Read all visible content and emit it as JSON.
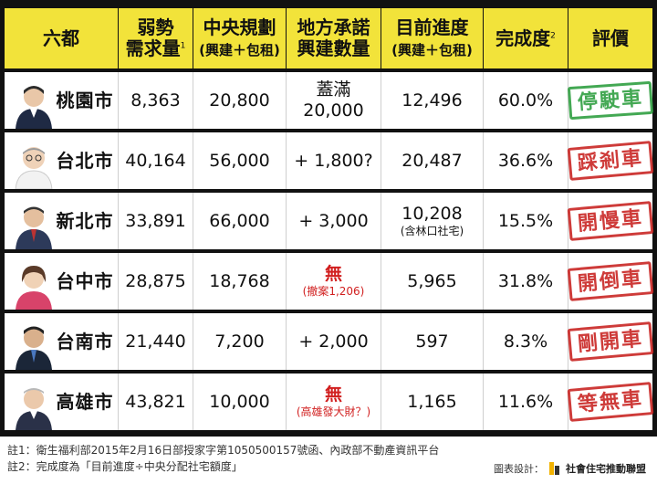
{
  "header": {
    "col_city": "六都",
    "col_demand_line1": "弱勢",
    "col_demand_line2": "需求量",
    "col_demand_sup": "1",
    "col_plan_line1": "中央規劃",
    "col_plan_line2": "(興建＋包租)",
    "col_promise_line1": "地方承諾",
    "col_promise_line2": "興建數量",
    "col_progress_line1": "目前進度",
    "col_progress_line2": "(興建＋包租)",
    "col_completion": "完成度",
    "col_completion_sup": "2",
    "col_rating": "評價"
  },
  "rows": [
    {
      "city": "桃園市",
      "demand": "8,363",
      "plan": "20,800",
      "promise_line1": "蓋滿",
      "promise_line2": "20,000",
      "progress": "12,496",
      "progress_note": "",
      "completion": "60.0%",
      "rating": "停駛車",
      "rating_color": "#2a9d3c"
    },
    {
      "city": "台北市",
      "demand": "40,164",
      "plan": "56,000",
      "promise": "+ 1,800?",
      "progress": "20,487",
      "progress_note": "",
      "completion": "36.6%",
      "rating": "踩剎車",
      "rating_color": "#c8201e"
    },
    {
      "city": "新北市",
      "demand": "33,891",
      "plan": "66,000",
      "promise": "+ 3,000",
      "progress": "10,208",
      "progress_note": "(含林口社宅)",
      "completion": "15.5%",
      "rating": "開慢車",
      "rating_color": "#c8201e"
    },
    {
      "city": "台中市",
      "demand": "28,875",
      "plan": "18,768",
      "promise_red": "無",
      "promise_red_note": "(撤案1,206)",
      "progress": "5,965",
      "progress_note": "",
      "completion": "31.8%",
      "rating": "開倒車",
      "rating_color": "#c8201e"
    },
    {
      "city": "台南市",
      "demand": "21,440",
      "plan": "7,200",
      "promise": "+ 2,000",
      "progress": "597",
      "progress_note": "",
      "completion": "8.3%",
      "rating": "剛開車",
      "rating_color": "#c8201e"
    },
    {
      "city": "高雄市",
      "demand": "43,821",
      "plan": "10,000",
      "promise_red": "無",
      "promise_red_note": "(高雄發大財？)",
      "progress": "1,165",
      "progress_note": "",
      "completion": "11.6%",
      "rating": "等無車",
      "rating_color": "#c8201e"
    }
  ],
  "footnotes": {
    "note1": "註1：衛生福利部2015年2月16日部授家字第1050500157號函、內政部不動產資訊平台",
    "note2": "註2：完成度為「目前進度÷中央分配社宅額度」"
  },
  "credit": {
    "label": "圖表設計：",
    "org": "社會住宅推動聯盟"
  }
}
